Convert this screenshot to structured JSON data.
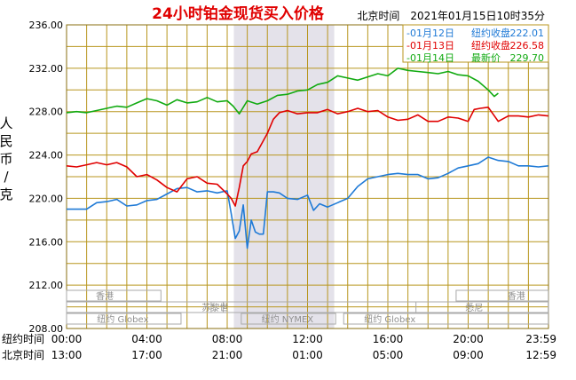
{
  "chart_data": {
    "type": "line",
    "title": "24小时铂金现货买入价格",
    "timestamp": "北京时间　2021年01月15日10时35分",
    "ylabel": "人民币/克",
    "ylim": [
      208,
      236
    ],
    "yticks": [
      "236.00",
      "232.00",
      "228.00",
      "224.00",
      "220.00",
      "216.00",
      "212.00",
      "208.00"
    ],
    "xlim": [
      0,
      24
    ],
    "row_labels": [
      "纽约时间",
      "北京时间"
    ],
    "xticks_ny": [
      "00:00",
      "04:00",
      "08:00",
      "12:00",
      "16:00",
      "20:00",
      "23:59"
    ],
    "xticks_bj": [
      "13:00",
      "17:00",
      "21:00",
      "01:00",
      "05:00",
      "09:00",
      "12:59"
    ],
    "grid": true,
    "legend_position": "top-right",
    "shaded_hours": [
      8.33,
      13.33
    ],
    "markets": [
      {
        "name": "香港",
        "rows": [
          {
            "row": 0,
            "start": 0,
            "end": 4.7
          },
          {
            "row": 0,
            "start": 19.4,
            "end": 23.99
          }
        ]
      },
      {
        "name": "苏黎世",
        "rows": [
          {
            "row": 1,
            "start": 0,
            "end": 7.8
          },
          {
            "row": 1,
            "start": 7.2,
            "end": 23.99
          }
        ]
      },
      {
        "name": "悉尼",
        "rows": [
          {
            "row": 1,
            "start": 17.4,
            "end": 23.99
          }
        ]
      },
      {
        "name": "纽约 Globex",
        "rows": [
          {
            "row": 2,
            "start": 0,
            "end": 5.7
          },
          {
            "row": 2,
            "start": 13.8,
            "end": 23.99
          }
        ]
      },
      {
        "name": "纽约 NYMEX",
        "rows": [
          {
            "row": 2,
            "start": 8.7,
            "end": 13.4
          }
        ]
      }
    ],
    "series": [
      {
        "name": "01月12日",
        "label": "纽约收盘",
        "value": "222.01",
        "color": "#1f7ad6",
        "x": [
          0,
          1,
          1.5,
          2,
          2.5,
          3,
          3.5,
          4,
          4.5,
          5,
          5.5,
          6,
          6.5,
          7,
          7.5,
          8,
          8.2,
          8.4,
          8.6,
          8.8,
          9,
          9.2,
          9.4,
          9.6,
          9.8,
          10,
          10.3,
          10.6,
          11,
          11.5,
          12,
          12.3,
          12.6,
          13,
          13.5,
          14,
          14.5,
          15,
          15.5,
          16,
          16.5,
          17,
          17.5,
          18,
          18.5,
          19,
          19.5,
          20,
          20.5,
          21,
          21.5,
          22,
          22.5,
          23,
          23.5,
          23.99
        ],
        "values": [
          219.0,
          219.0,
          219.6,
          219.7,
          219.9,
          219.3,
          219.4,
          219.8,
          219.9,
          220.4,
          220.9,
          221.0,
          220.6,
          220.7,
          220.5,
          220.7,
          218.6,
          216.3,
          217.0,
          219.4,
          215.4,
          218.0,
          216.9,
          216.7,
          216.7,
          220.6,
          220.6,
          220.5,
          220.0,
          219.9,
          220.3,
          218.9,
          219.5,
          219.2,
          219.6,
          220.0,
          221.1,
          221.8,
          222.0,
          222.2,
          222.3,
          222.2,
          222.2,
          221.8,
          221.9,
          222.3,
          222.8,
          223.0,
          223.2,
          223.8,
          223.5,
          223.4,
          223.0,
          223.0,
          222.9,
          223.0
        ]
      },
      {
        "name": "01月13日",
        "label": "纽约收盘",
        "value": "226.58",
        "color": "#e00000",
        "x": [
          0,
          0.5,
          1,
          1.5,
          2,
          2.5,
          3,
          3.5,
          4,
          4.5,
          5,
          5.5,
          6,
          6.5,
          7,
          7.5,
          8,
          8.2,
          8.4,
          8.6,
          8.8,
          9,
          9.2,
          9.5,
          10,
          10.3,
          10.6,
          11,
          11.5,
          12,
          12.5,
          13,
          13.5,
          14,
          14.5,
          15,
          15.5,
          16,
          16.5,
          17,
          17.5,
          18,
          18.5,
          19,
          19.5,
          20,
          20.3,
          20.6,
          21,
          21.5,
          22,
          22.5,
          23,
          23.5,
          23.99
        ],
        "values": [
          223.0,
          222.9,
          223.1,
          223.3,
          223.1,
          223.3,
          222.9,
          222.0,
          222.2,
          221.7,
          221.0,
          220.6,
          221.8,
          222.0,
          221.4,
          221.3,
          220.4,
          220.0,
          219.3,
          221.0,
          223.0,
          223.4,
          224.1,
          224.3,
          226.0,
          227.3,
          227.9,
          228.1,
          227.8,
          227.9,
          227.9,
          228.2,
          227.8,
          228.0,
          228.3,
          228.0,
          228.1,
          227.5,
          227.2,
          227.3,
          227.7,
          227.1,
          227.1,
          227.5,
          227.4,
          227.1,
          228.2,
          228.3,
          228.4,
          227.1,
          227.6,
          227.6,
          227.5,
          227.7,
          227.6
        ]
      },
      {
        "name": "01月14日",
        "label": "最新价",
        "value": "229.70",
        "color": "#11aa11",
        "x": [
          0,
          0.5,
          1,
          1.5,
          2,
          2.5,
          3,
          3.5,
          4,
          4.5,
          5,
          5.5,
          6,
          6.5,
          7,
          7.5,
          8,
          8.3,
          8.6,
          9,
          9.5,
          10,
          10.5,
          11,
          11.5,
          12,
          12.5,
          13,
          13.5,
          14,
          14.5,
          15,
          15.5,
          16,
          16.5,
          17,
          17.5,
          18,
          18.5,
          19,
          19.5,
          20,
          20.5,
          21,
          21.3,
          21.5
        ],
        "values": [
          227.9,
          228.0,
          227.9,
          228.1,
          228.3,
          228.5,
          228.4,
          228.8,
          229.2,
          229.0,
          228.6,
          229.1,
          228.8,
          228.9,
          229.3,
          228.9,
          229.0,
          228.5,
          227.8,
          229.0,
          228.7,
          229.0,
          229.5,
          229.6,
          229.9,
          230.0,
          230.5,
          230.7,
          231.3,
          231.1,
          230.9,
          231.2,
          231.5,
          231.3,
          232.0,
          231.8,
          231.7,
          231.6,
          231.5,
          231.7,
          231.4,
          231.3,
          230.8,
          230.0,
          229.4,
          229.7
        ]
      }
    ]
  }
}
